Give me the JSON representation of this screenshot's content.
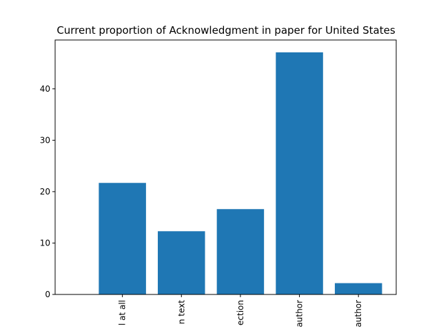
{
  "chart_data": {
    "type": "bar",
    "title": "Current proportion of Acknowledgment in paper for United States",
    "xlabel": "",
    "ylabel": "",
    "categories": [
      "l at all",
      "n text",
      "ection",
      "author",
      "author"
    ],
    "values": [
      21.7,
      12.3,
      16.6,
      47.1,
      2.2
    ],
    "ylim": [
      0,
      49.5
    ],
    "yticks": [
      0,
      10,
      20,
      30,
      40
    ],
    "bar_color": "#1f77b4",
    "grid": false,
    "legend": "none"
  }
}
